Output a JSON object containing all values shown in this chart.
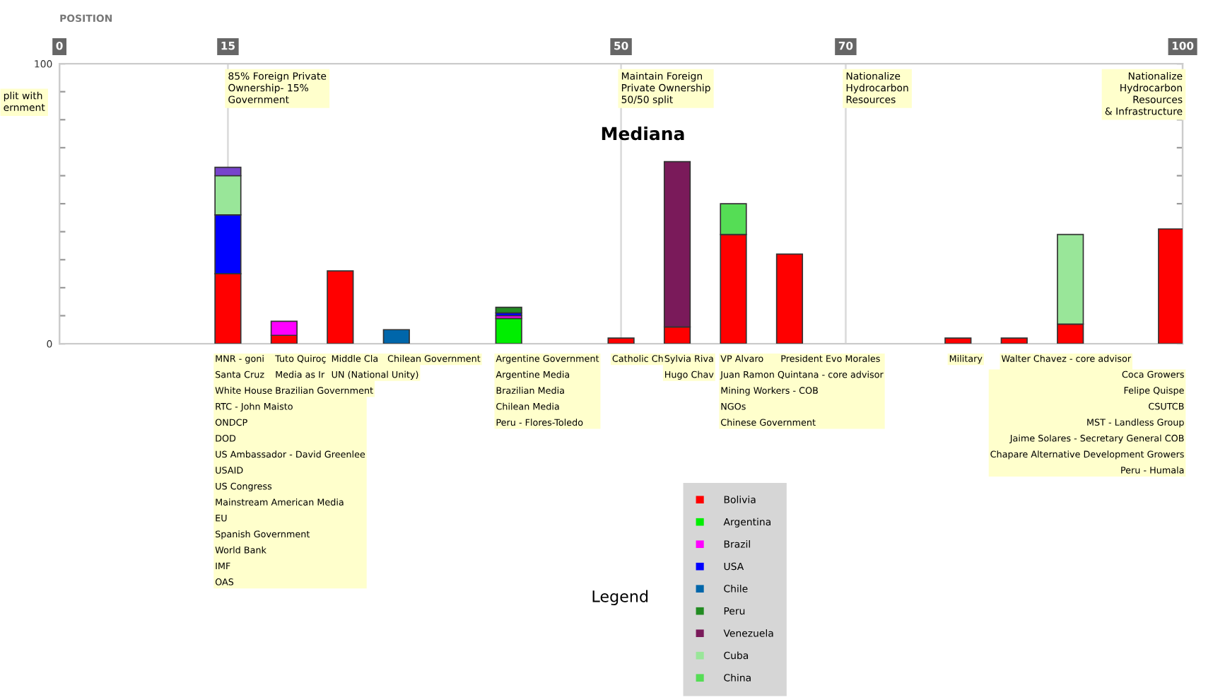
{
  "chart_data": {
    "type": "bar",
    "stacked": true,
    "xlabel": "POSITION",
    "x": [
      15,
      20,
      25,
      30,
      40,
      50,
      55,
      60,
      65,
      80,
      85,
      90,
      99
    ],
    "series": [
      {
        "name": "Bolivia",
        "color": "#ff0000",
        "values": [
          25,
          3,
          26,
          null,
          null,
          2,
          6,
          39,
          32,
          2,
          2,
          7,
          41
        ]
      },
      {
        "name": "Argentina",
        "color": "#00ee00",
        "values": [
          null,
          null,
          null,
          null,
          9,
          null,
          null,
          null,
          null,
          null,
          null,
          null,
          null
        ]
      },
      {
        "name": "Brazil",
        "color": "#ff00ff",
        "values": [
          null,
          5,
          null,
          null,
          1,
          null,
          null,
          null,
          null,
          null,
          null,
          null,
          null
        ]
      },
      {
        "name": "USA",
        "color": "#0000ff",
        "values": [
          21,
          null,
          null,
          null,
          1,
          null,
          null,
          null,
          null,
          null,
          null,
          null,
          null
        ]
      },
      {
        "name": "Chile",
        "color": "#0066aa",
        "values": [
          null,
          null,
          null,
          5,
          null,
          null,
          null,
          null,
          null,
          null,
          null,
          null,
          null
        ]
      },
      {
        "name": "Peru",
        "color": "#228b22",
        "values": [
          null,
          null,
          null,
          null,
          2,
          null,
          null,
          null,
          null,
          null,
          null,
          null,
          null
        ]
      },
      {
        "name": "Venezuela",
        "color": "#7a1a5a",
        "values": [
          null,
          null,
          null,
          null,
          null,
          null,
          59,
          null,
          null,
          null,
          null,
          null,
          null
        ]
      },
      {
        "name": "Cuba",
        "color": "#99e699",
        "values": [
          14,
          null,
          null,
          null,
          null,
          null,
          null,
          null,
          null,
          null,
          null,
          32,
          null
        ]
      },
      {
        "name": "China",
        "color": "#55dd55",
        "values": [
          null,
          null,
          null,
          null,
          null,
          null,
          null,
          11,
          null,
          null,
          null,
          null,
          null
        ]
      },
      {
        "color": "#7744cc",
        "values": [
          3,
          null,
          null,
          null,
          null,
          null,
          null,
          null,
          null,
          null,
          null,
          null,
          null
        ]
      }
    ],
    "xlim": [
      0,
      100
    ],
    "xticks": [
      0,
      15,
      50,
      70,
      100
    ],
    "ylim": [
      0,
      100
    ],
    "yticks": [
      0,
      {
        "value": 10,
        "label": null
      },
      {
        "value": 20,
        "label": null
      },
      {
        "value": 30,
        "label": null
      },
      {
        "value": 40,
        "label": null
      },
      {
        "value": 50,
        "label": null
      },
      {
        "value": 60,
        "label": null
      },
      {
        "value": 70,
        "label": null
      },
      {
        "value": 80,
        "label": null
      },
      {
        "value": 90,
        "label": null
      },
      100
    ],
    "grid": "x",
    "legend": "bottom",
    "annotations": [
      "plit with\nernment",
      "85% Foreign Private\nOwnership- 15%\nGovernment",
      "Maintain Foreign\nPrivate Ownership\n50/50 split",
      "Nationalize\nHydrocarbon\nResources",
      "Nationalize\nHydrocarbon\nResources\n& Infrastructure",
      "Mediana",
      "Legend",
      "MNR - goni\nSanta Cruz\nWhite House\nRTC - John Maisto\nONDCP\nDOD\nUS Ambassador - David Greenlee\nUSAID\nUS Congress\nMainstream American Media\nEU\nSpanish Government\nWorld Bank\nIMF\nOAS",
      "Tuto Quiroç\nMedia as Ir\nBrazilian Government",
      "Middle Cla\nUN (National Unity)",
      "Chilean Government",
      "Argentine Government\nArgentine Media\nBrazilian Media\nChilean Media\nPeru - Flores-Toledo",
      "Catholic Ch",
      "Sylvia Riva\nHugo Chav",
      "VP Alvaro\nJuan Ramon Quintana - core advisor\nMining Workers - COB\nNGOs\nChinese Government",
      "President Evo Morales",
      "Military",
      "Walter Chavez - core advisor\nFidel Castro",
      "Coca Growers\nFelipe Quispe\nCSUTCB\nMST - Landless Group\nJaime Solares - Secretary General COB\nChapare Alternative Development Growers\nPeru - Humala"
    ]
  }
}
